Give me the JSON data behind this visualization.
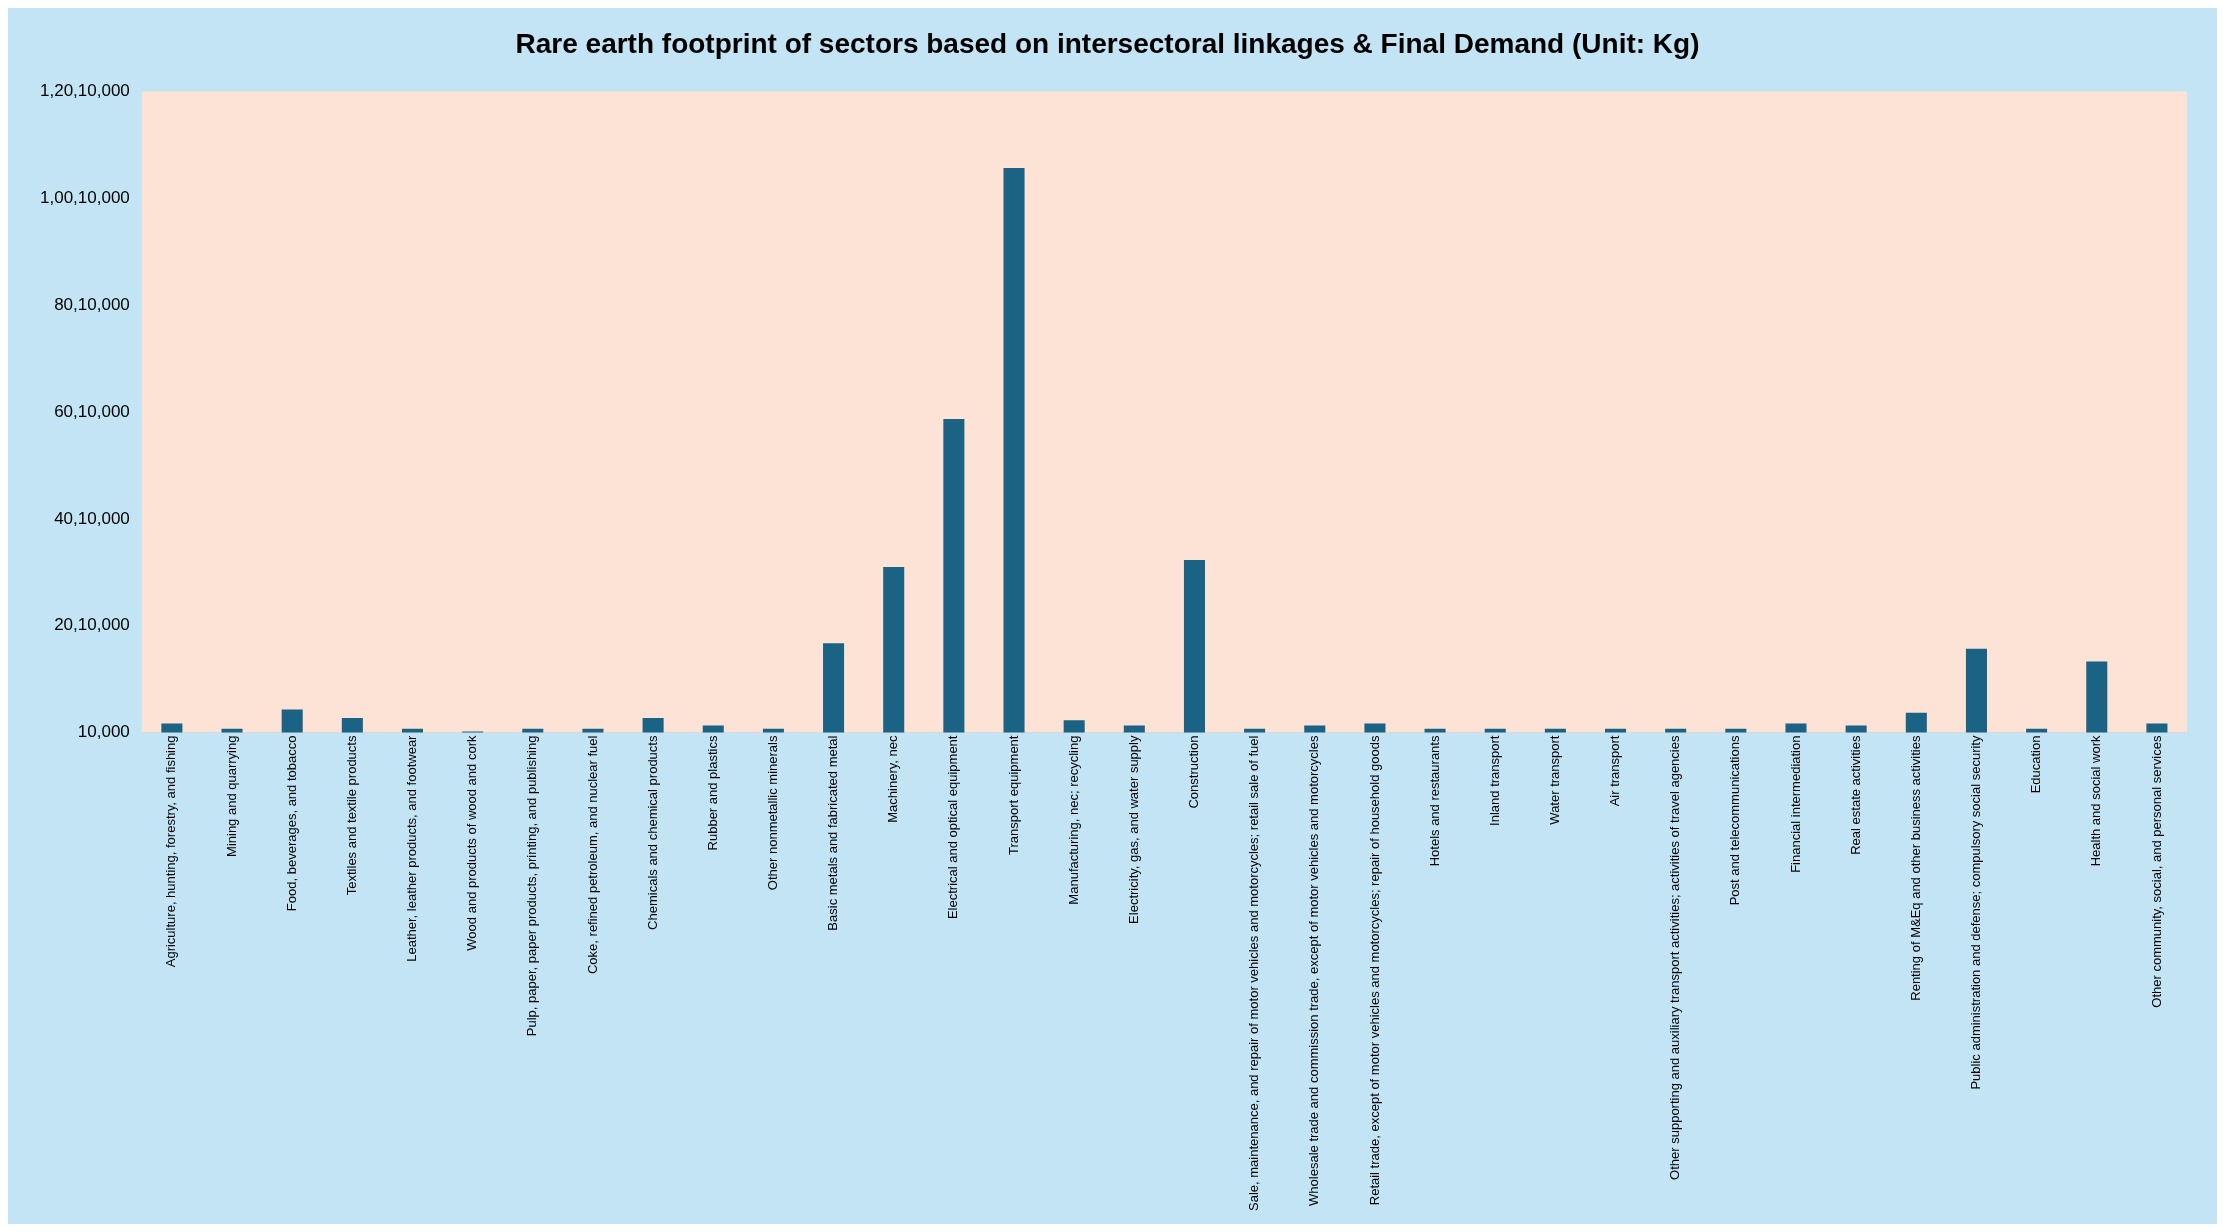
{
  "chart_data": {
    "type": "bar",
    "title": "Rare earth footprint of sectors based on intersectoral linkages & Final Demand (Unit: Kg)",
    "categories": [
      "Agriculture, hunting, forestry, and fishing",
      "Mining and quarrying",
      "Food, beverages, and tobacco",
      "Textiles and textile products",
      "Leather, leather products, and footwear",
      "Wood and products of wood and cork",
      "Pulp, paper, paper products, printing, and publishing",
      "Coke, refined petroleum, and nuclear fuel",
      "Chemicals and chemical products",
      "Rubber and plastics",
      "Other nonmetallic minerals",
      "Basic metals and fabricated metal",
      "Machinery, nec",
      "Electrical and optical equipment",
      "Transport equipment",
      "Manufacturing, nec; recycling",
      "Electricity, gas, and water supply",
      "Construction",
      "Sale, maintenance, and repair of motor vehicles and motorcycles; retail sale of fuel",
      "Wholesale trade and commission trade, except of motor vehicles and motorcycles",
      "Retail trade, except of motor vehicles and motorcycles; repair of household goods",
      "Hotels and restaurants",
      "Inland transport",
      "Water transport",
      "Air transport",
      "Other supporting and auxiliary transport activities; activities of travel agencies",
      "Post and telecommunications",
      "Financial intermediation",
      "Real estate activities",
      "Renting of M&Eq and other business activities",
      "Public administration and defense; compulsory social security",
      "Education",
      "Health and social work",
      "Other community, social, and personal services"
    ],
    "values": [
      180000,
      80000,
      440000,
      280000,
      80000,
      30000,
      80000,
      80000,
      280000,
      140000,
      80000,
      1680000,
      3110000,
      5880000,
      10580000,
      240000,
      140000,
      3240000,
      80000,
      140000,
      180000,
      80000,
      80000,
      80000,
      80000,
      80000,
      80000,
      180000,
      140000,
      380000,
      1580000,
      80000,
      1340000,
      180000
    ],
    "color": "#1b6384",
    "ylim": [
      10000,
      12010000
    ],
    "yticks": [
      {
        "value": 10000,
        "label": "10,000"
      },
      {
        "value": 2010000,
        "label": "20,10,000"
      },
      {
        "value": 4010000,
        "label": "40,10,000"
      },
      {
        "value": 6010000,
        "label": "60,10,000"
      },
      {
        "value": 8010000,
        "label": "80,10,000"
      },
      {
        "value": 10010000,
        "label": "1,00,10,000"
      },
      {
        "value": 12010000,
        "label": "1,20,10,000"
      }
    ],
    "grid": false,
    "legend": false
  }
}
